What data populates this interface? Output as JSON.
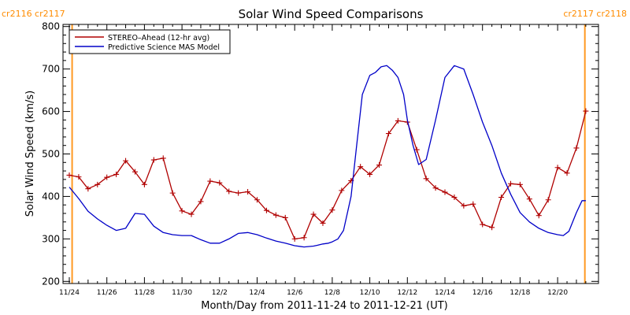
{
  "colors": {
    "stereo": "#b00000",
    "mas": "#0000c8",
    "carrington": "#ff9922",
    "axis": "#000000"
  },
  "carrington_labels": {
    "left": "cr2116 cr2117",
    "right": "cr2117 cr2118"
  },
  "chart_data": {
    "type": "line",
    "title": "Solar Wind Speed Comparisons",
    "xlabel": "Month/Day from 2011-11-24 to 2011-12-21 (UT)",
    "ylabel": "Solar Wind Speed (km/s)",
    "xlim": [
      0,
      27.7
    ],
    "ylim": [
      195,
      805
    ],
    "x_axis_origin": "2011-11-24",
    "x_ticks": [
      {
        "x": 0,
        "label": "11/24"
      },
      {
        "x": 2,
        "label": "11/26"
      },
      {
        "x": 4,
        "label": "11/28"
      },
      {
        "x": 6,
        "label": "11/30"
      },
      {
        "x": 8,
        "label": "12/2"
      },
      {
        "x": 10,
        "label": "12/4"
      },
      {
        "x": 12,
        "label": "12/6"
      },
      {
        "x": 14,
        "label": "12/8"
      },
      {
        "x": 16,
        "label": "12/10"
      },
      {
        "x": 18,
        "label": "12/12"
      },
      {
        "x": 20,
        "label": "12/14"
      },
      {
        "x": 22,
        "label": "12/16"
      },
      {
        "x": 24,
        "label": "12/18"
      },
      {
        "x": 26,
        "label": "12/20"
      }
    ],
    "y_ticks": [
      200,
      300,
      400,
      500,
      600,
      700,
      800
    ],
    "legend": {
      "position": "top-left"
    },
    "carrington_boundaries_x": [
      0.15,
      27.45
    ],
    "series": [
      {
        "name": "STEREO–Ahead (12-hr avg)",
        "marker": "plus",
        "x": [
          0.0,
          0.5,
          1.0,
          1.5,
          2.0,
          2.5,
          3.0,
          3.5,
          4.0,
          4.5,
          5.0,
          5.5,
          6.0,
          6.5,
          7.0,
          7.5,
          8.0,
          8.5,
          9.0,
          9.5,
          10.0,
          10.5,
          11.0,
          11.5,
          12.0,
          12.5,
          13.0,
          13.5,
          14.0,
          14.5,
          15.0,
          15.5,
          16.0,
          16.5,
          17.0,
          17.5,
          18.0,
          18.5,
          19.0,
          19.5,
          20.0,
          20.5,
          21.0,
          21.5,
          22.0,
          22.5,
          23.0,
          23.5,
          24.0,
          24.5,
          25.0,
          25.5,
          26.0,
          26.5,
          27.0,
          27.5
        ],
        "values": [
          450,
          446,
          418,
          428,
          445,
          452,
          484,
          458,
          428,
          486,
          490,
          408,
          366,
          358,
          388,
          436,
          432,
          412,
          408,
          411,
          392,
          367,
          356,
          350,
          300,
          303,
          358,
          337,
          368,
          414,
          437,
          470,
          452,
          474,
          548,
          578,
          575,
          510,
          442,
          420,
          410,
          398,
          378,
          382,
          334,
          327,
          398,
          430,
          428,
          394,
          355,
          392,
          468,
          455,
          514,
          601
        ]
      },
      {
        "name": "Predictive Science MAS Model",
        "marker": "none",
        "x": [
          0.0,
          0.5,
          1.0,
          1.5,
          2.0,
          2.5,
          3.0,
          3.5,
          4.0,
          4.5,
          5.0,
          5.5,
          6.0,
          6.5,
          7.0,
          7.5,
          8.0,
          8.5,
          9.0,
          9.5,
          10.0,
          10.5,
          11.0,
          11.5,
          12.0,
          12.5,
          13.0,
          13.2,
          13.5,
          13.8,
          14.0,
          14.3,
          14.6,
          15.0,
          15.3,
          15.6,
          16.0,
          16.3,
          16.6,
          16.9,
          17.2,
          17.5,
          17.8,
          18.0,
          18.3,
          18.6,
          19.0,
          19.5,
          20.0,
          20.5,
          21.0,
          21.5,
          22.0,
          22.5,
          23.0,
          23.5,
          24.0,
          24.5,
          25.0,
          25.5,
          26.0,
          26.3,
          26.6,
          27.0,
          27.3,
          27.5
        ],
        "values": [
          422,
          395,
          365,
          347,
          332,
          320,
          325,
          360,
          358,
          330,
          315,
          310,
          308,
          308,
          298,
          290,
          290,
          300,
          313,
          315,
          310,
          302,
          295,
          290,
          284,
          281,
          283,
          285,
          288,
          290,
          293,
          300,
          320,
          400,
          520,
          640,
          685,
          692,
          705,
          708,
          697,
          680,
          640,
          580,
          520,
          475,
          487,
          580,
          680,
          708,
          700,
          640,
          575,
          520,
          455,
          405,
          362,
          340,
          325,
          315,
          310,
          308,
          318,
          362,
          390,
          390
        ]
      }
    ]
  }
}
